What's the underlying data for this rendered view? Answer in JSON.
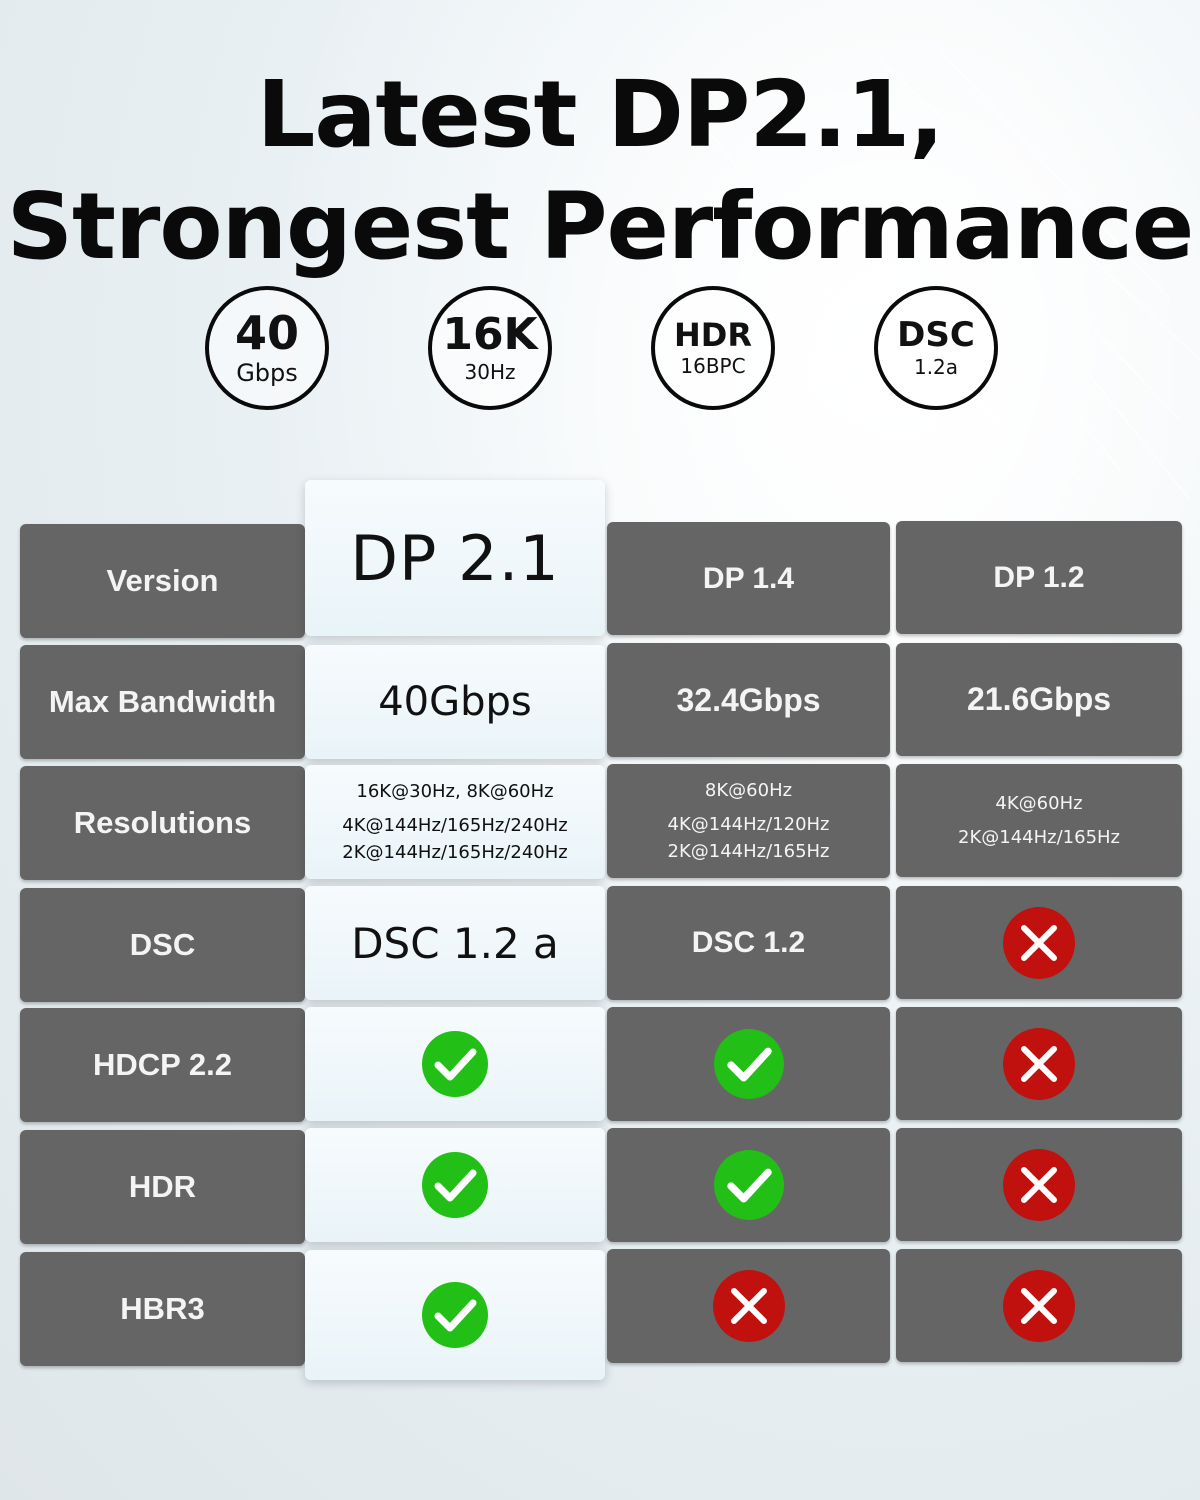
{
  "headline": {
    "line1": "Latest DP2.1,",
    "line2": "Strongest Performance"
  },
  "badges": [
    {
      "big": "40",
      "small": "Gbps"
    },
    {
      "big": "16K",
      "small": "30Hz"
    },
    {
      "big": "HDR",
      "small": "16BPC"
    },
    {
      "big": "DSC",
      "small": "1.2a"
    }
  ],
  "table": {
    "rows": {
      "version": {
        "label": "Version",
        "dp21": "DP 2.1",
        "dp14": "DP 1.4",
        "dp12": "DP 1.2"
      },
      "bandwidth": {
        "label": "Max Bandwidth",
        "dp21": "40Gbps",
        "dp14": "32.4Gbps",
        "dp12": "21.6Gbps"
      },
      "resolutions": {
        "label": "Resolutions",
        "dp21": [
          "16K@30Hz, 8K@60Hz",
          "4K@144Hz/165Hz/240Hz",
          "2K@144Hz/165Hz/240Hz"
        ],
        "dp14": [
          "8K@60Hz",
          "4K@144Hz/120Hz",
          "2K@144Hz/165Hz"
        ],
        "dp12": [
          "4K@60Hz",
          "2K@144Hz/165Hz"
        ]
      },
      "dsc": {
        "label": "DSC",
        "dp21": "DSC 1.2 a",
        "dp14": "DSC 1.2",
        "dp12": "cross"
      },
      "hdcp": {
        "label": "HDCP 2.2",
        "dp21": "check",
        "dp14": "check",
        "dp12": "cross"
      },
      "hdr": {
        "label": "HDR",
        "dp21": "check",
        "dp14": "check",
        "dp12": "cross"
      },
      "hbr3": {
        "label": "HBR3",
        "dp21": "check",
        "dp14": "cross",
        "dp12": "cross"
      }
    }
  },
  "colors": {
    "check": "#22c016",
    "cross": "#c0110f",
    "dark_cell": "#656565",
    "light_cell": "#eef7fa"
  }
}
